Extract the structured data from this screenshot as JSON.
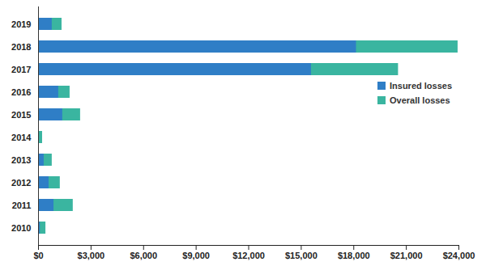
{
  "chart_data": {
    "type": "bar",
    "orientation": "horizontal",
    "stacked": false,
    "legend": "right",
    "grid": false,
    "categories": [
      "2019",
      "2018",
      "2017",
      "2016",
      "2015",
      "2014",
      "2013",
      "2012",
      "2011",
      "2010"
    ],
    "series": [
      {
        "name": "Insured losses",
        "color": "#2f7ec6",
        "values": [
          780,
          18150,
          15580,
          1150,
          1380,
          50,
          320,
          600,
          880,
          100
        ]
      },
      {
        "name": "Overall losses",
        "color": "#3ab5a0",
        "values": [
          1340,
          23950,
          20550,
          1800,
          2400,
          230,
          780,
          1240,
          1980,
          420
        ]
      }
    ],
    "xlim": [
      0,
      24000
    ],
    "xticks": [
      {
        "value": 0,
        "label": "$0"
      },
      {
        "value": 3000,
        "label": "$3,000"
      },
      {
        "value": 6000,
        "label": "$6,000"
      },
      {
        "value": 9000,
        "label": "$9,000"
      },
      {
        "value": 12000,
        "label": "$12,000"
      },
      {
        "value": 15000,
        "label": "$15,000"
      },
      {
        "value": 18000,
        "label": "$18,000"
      },
      {
        "value": 21000,
        "label": "$21,000"
      },
      {
        "value": 24000,
        "label": "$24,000"
      }
    ]
  }
}
